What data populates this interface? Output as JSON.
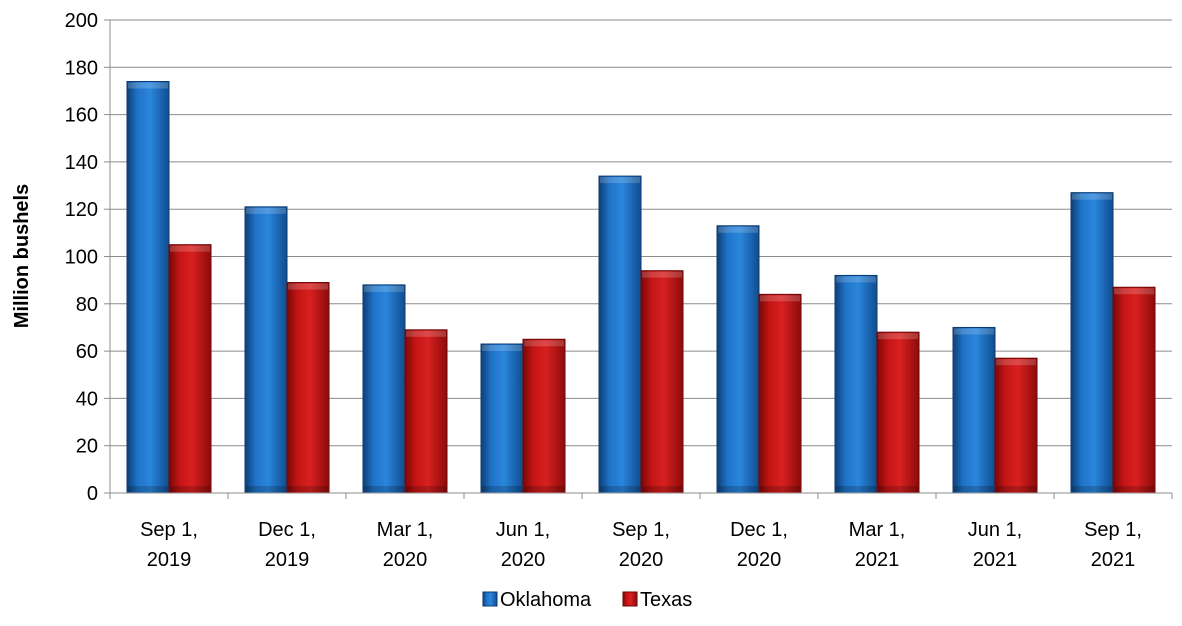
{
  "chart_data": {
    "type": "bar",
    "categories": [
      [
        "Sep 1,",
        "2019"
      ],
      [
        "Dec 1,",
        "2019"
      ],
      [
        "Mar 1,",
        "2020"
      ],
      [
        "Jun 1,",
        "2020"
      ],
      [
        "Sep 1,",
        "2020"
      ],
      [
        "Dec 1,",
        "2020"
      ],
      [
        "Mar 1,",
        "2021"
      ],
      [
        "Jun 1,",
        "2021"
      ],
      [
        "Sep 1,",
        "2021"
      ]
    ],
    "series": [
      {
        "name": "Oklahoma",
        "color": "#1f73c8",
        "values": [
          174,
          121,
          88,
          63,
          134,
          113,
          92,
          70,
          127
        ]
      },
      {
        "name": "Texas",
        "color": "#c41414",
        "values": [
          105,
          89,
          69,
          65,
          94,
          84,
          68,
          57,
          87
        ]
      }
    ],
    "ylabel": "Million bushels",
    "ylim": [
      0,
      200
    ],
    "yticks": [
      0,
      20,
      40,
      60,
      80,
      100,
      120,
      140,
      160,
      180,
      200
    ],
    "grid": true,
    "legend": "bottom-center"
  }
}
